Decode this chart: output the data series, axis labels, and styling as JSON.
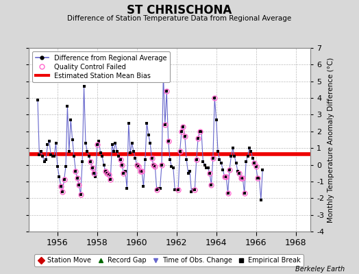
{
  "title": "ST CHRISCHONA",
  "subtitle": "Difference of Station Temperature Data from Regional Average",
  "ylabel": "Monthly Temperature Anomaly Difference (°C)",
  "ylim": [
    -4,
    7
  ],
  "bias": 0.65,
  "background_color": "#d8d8d8",
  "plot_bg_color": "#ffffff",
  "line_color": "#6666cc",
  "bias_color": "#ee0000",
  "watermark": "Berkeley Earth",
  "y_values": [
    3.9,
    0.6,
    0.8,
    0.5,
    0.2,
    0.3,
    1.2,
    1.4,
    0.6,
    0.5,
    0.5,
    1.3,
    -0.1,
    -0.7,
    -1.3,
    -1.6,
    -0.9,
    -0.1,
    3.5,
    0.8,
    2.7,
    1.5,
    0.5,
    -0.4,
    -0.8,
    -1.2,
    -1.8,
    0.2,
    4.7,
    1.3,
    0.8,
    0.5,
    0.2,
    -0.2,
    -0.5,
    -0.7,
    1.2,
    1.4,
    0.7,
    0.5,
    0.0,
    -0.4,
    -0.5,
    -0.6,
    -0.9,
    1.2,
    0.8,
    1.3,
    0.8,
    0.5,
    0.3,
    0.0,
    -0.5,
    -0.4,
    -1.4,
    2.5,
    0.7,
    1.3,
    0.8,
    0.4,
    0.0,
    -0.1,
    -0.4,
    -0.4,
    -1.3,
    0.3,
    2.5,
    1.8,
    1.3,
    0.4,
    0.0,
    -0.1,
    -1.5,
    -1.4,
    -1.4,
    0.0,
    5.4,
    2.4,
    4.4,
    1.4,
    0.3,
    -0.1,
    -0.2,
    -1.5,
    -1.5,
    -1.5,
    0.8,
    2.0,
    2.3,
    1.7,
    0.3,
    -0.5,
    -0.4,
    -1.6,
    -1.5,
    -1.5,
    0.3,
    1.6,
    2.0,
    2.0,
    0.2,
    0.0,
    -0.2,
    -0.2,
    -0.5,
    -1.2,
    0.4,
    4.0,
    2.7,
    0.8,
    0.3,
    0.1,
    -0.3,
    -0.7,
    -0.7,
    -1.7,
    -0.3,
    0.5,
    1.0,
    0.5,
    0.1,
    -0.4,
    -0.5,
    -0.8,
    -0.8,
    -1.7,
    0.2,
    0.5,
    1.0,
    0.8,
    0.4,
    0.1,
    -0.1,
    -0.8,
    -0.8,
    -2.1,
    -0.3
  ],
  "qc_fail_indices": [
    14,
    15,
    16,
    23,
    24,
    25,
    26,
    32,
    33,
    34,
    36,
    41,
    42,
    43,
    44,
    50,
    51,
    52,
    60,
    61,
    62,
    63,
    69,
    70,
    71,
    72,
    75,
    76,
    77,
    78,
    79,
    85,
    86,
    87,
    88,
    89,
    95,
    96,
    97,
    98,
    104,
    105,
    106,
    107,
    113,
    114,
    115,
    116,
    122,
    123,
    124,
    125,
    131,
    132,
    133
  ]
}
